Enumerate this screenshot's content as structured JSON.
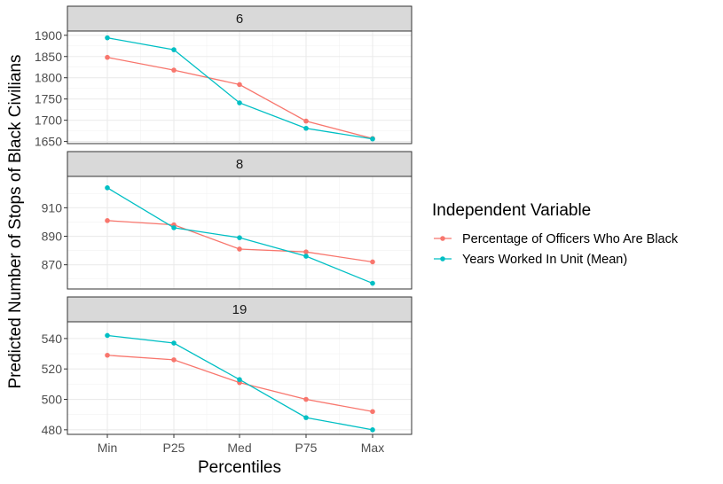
{
  "chart_data": {
    "type": "line",
    "xlabel": "Percentiles",
    "ylabel": "Predicted Number of Stops of Black Civilians",
    "categories": [
      "Min",
      "P25",
      "Med",
      "P75",
      "Max"
    ],
    "grid": true,
    "legend": {
      "title": "Independent Variable",
      "position": "right"
    },
    "series_styles": [
      {
        "name": "Percentage of Officers Who Are Black",
        "color": "#F8766D"
      },
      {
        "name": "Years Worked In Unit (Mean)",
        "color": "#00BFC4"
      }
    ],
    "panels": [
      {
        "strip": "6",
        "ylim": [
          1645,
          1910
        ],
        "yticks": [
          1650,
          1700,
          1750,
          1800,
          1850,
          1900
        ],
        "series": [
          {
            "name": "Percentage of Officers Who Are Black",
            "values": [
              1848,
              1818,
              1784,
              1698,
              1657
            ]
          },
          {
            "name": "Years Worked In Unit (Mean)",
            "values": [
              1894,
              1866,
              1741,
              1681,
              1656
            ]
          }
        ]
      },
      {
        "strip": "8",
        "ylim": [
          853,
          932
        ],
        "yticks": [
          870,
          890,
          910
        ],
        "series": [
          {
            "name": "Percentage of Officers Who Are Black",
            "values": [
              901,
              898,
              881,
              879,
              872
            ]
          },
          {
            "name": "Years Worked In Unit (Mean)",
            "values": [
              924,
              896,
              889,
              876,
              857
            ]
          }
        ]
      },
      {
        "strip": "19",
        "ylim": [
          477,
          551
        ],
        "yticks": [
          480,
          500,
          520,
          540
        ],
        "series": [
          {
            "name": "Percentage of Officers Who Are Black",
            "values": [
              529,
              526,
              511,
              500,
              492
            ]
          },
          {
            "name": "Years Worked In Unit (Mean)",
            "values": [
              542,
              537,
              513,
              488,
              480
            ]
          }
        ]
      }
    ]
  }
}
